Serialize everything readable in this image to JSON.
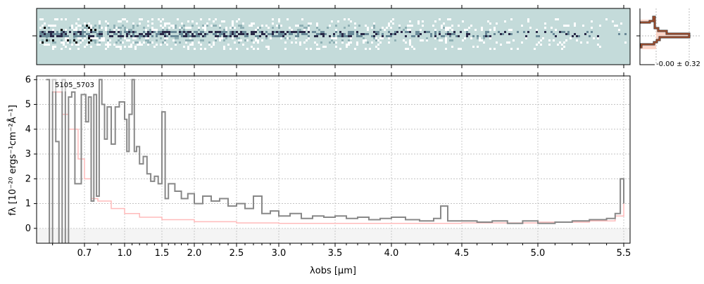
{
  "chart_data": [
    {
      "type": "heatmap",
      "description_label": "",
      "colors": {
        "background": "#c4dbda",
        "dark": "#1a1a2e",
        "light": "#ffffff"
      }
    },
    {
      "type": "line",
      "profile_label": "-0.00 ± 0.32",
      "colors": {
        "line": "#5a2a1a",
        "fill": "#f8c8b8"
      }
    },
    {
      "type": "line",
      "label": "5105_5703",
      "xlabel": "λobs [μm]",
      "ylabel": "fλ [10⁻²⁰ ergs⁻¹cm⁻²Å⁻¹]",
      "xticks": [
        0.7,
        1.0,
        1.5,
        2.0,
        2.5,
        3.0,
        3.5,
        4.0,
        4.5,
        5.0,
        5.5
      ],
      "xtick_labels": [
        "0.7",
        "1.0",
        "1.5",
        "2.0",
        "2.5",
        "3.0",
        "3.5",
        "4.0",
        "4.5",
        "5.0",
        "5.5"
      ],
      "yticks": [
        0,
        1,
        2,
        3,
        4,
        5,
        6
      ],
      "ytick_labels": [
        "0",
        "1",
        "2",
        "3",
        "4",
        "5",
        "6"
      ],
      "ylim": [
        -0.6,
        6.15
      ],
      "grid": true,
      "series": [
        {
          "color": "#888888",
          "x": [
            0.58,
            0.59,
            0.6,
            0.61,
            0.62,
            0.63,
            0.64,
            0.65,
            0.66,
            0.67,
            0.69,
            0.71,
            0.73,
            0.75,
            0.77,
            0.79,
            0.81,
            0.83,
            0.85,
            0.87,
            0.9,
            0.93,
            0.96,
            1.0,
            1.03,
            1.06,
            1.1,
            1.13,
            1.16,
            1.2,
            1.25,
            1.3,
            1.35,
            1.4,
            1.45,
            1.5,
            1.55,
            1.6,
            1.7,
            1.8,
            1.9,
            2.0,
            2.1,
            2.2,
            2.3,
            2.4,
            2.5,
            2.6,
            2.7,
            2.8,
            2.9,
            3.0,
            3.1,
            3.2,
            3.3,
            3.4,
            3.5,
            3.6,
            3.7,
            3.8,
            3.9,
            4.0,
            4.1,
            4.2,
            4.3,
            4.35,
            4.4,
            4.5,
            4.6,
            4.7,
            4.8,
            4.9,
            5.0,
            5.1,
            5.2,
            5.3,
            5.4,
            5.45,
            5.48,
            5.5
          ],
          "y": [
            6,
            -1,
            6,
            3.5,
            -1,
            6,
            -1,
            5.3,
            5.5,
            1.8,
            5.4,
            4.3,
            5.3,
            1.1,
            5.4,
            1.3,
            6,
            5,
            3.6,
            4.9,
            3.4,
            4.9,
            5.1,
            4.4,
            3.1,
            4.6,
            6,
            3.1,
            3.3,
            2.6,
            2.9,
            2.2,
            1.9,
            2.1,
            1.8,
            4.7,
            1.2,
            1.8,
            1.5,
            1.2,
            1.4,
            1.0,
            1.3,
            1.1,
            1.2,
            0.9,
            1.0,
            0.8,
            1.3,
            0.6,
            0.7,
            0.5,
            0.6,
            0.4,
            0.5,
            0.45,
            0.5,
            0.4,
            0.45,
            0.35,
            0.4,
            0.45,
            0.35,
            0.3,
            0.4,
            0.9,
            0.3,
            0.3,
            0.25,
            0.3,
            0.2,
            0.3,
            0.2,
            0.25,
            0.3,
            0.35,
            0.4,
            0.6,
            2.0,
            1.0
          ]
        },
        {
          "color": "#ffbbbb",
          "x": [
            0.6,
            0.63,
            0.65,
            0.68,
            0.7,
            0.75,
            0.8,
            0.9,
            1.0,
            1.2,
            1.5,
            2.0,
            2.5,
            3.0,
            4.0,
            4.5,
            5.0,
            5.3,
            5.45,
            5.5
          ],
          "y": [
            5.5,
            4.6,
            4.0,
            2.8,
            2.0,
            1.2,
            1.1,
            0.8,
            0.6,
            0.45,
            0.35,
            0.27,
            0.22,
            0.2,
            0.2,
            0.22,
            0.25,
            0.3,
            0.5,
            1.6
          ]
        }
      ]
    }
  ]
}
